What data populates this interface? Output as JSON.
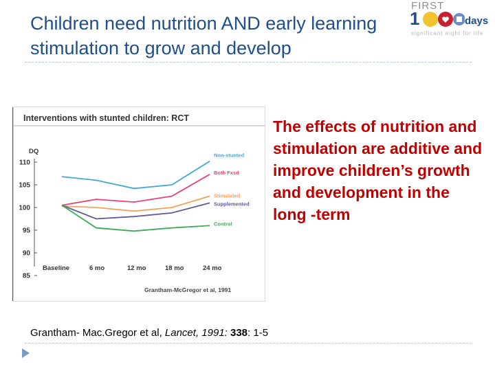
{
  "slide": {
    "title_line1": "Children need nutrition AND early learning",
    "title_line2": "stimulation to grow and develop",
    "body_text": "The effects of nutrition and stimulation are additive and improve children’s growth and development in the long -term",
    "citation": {
      "authors": "Grantham- Mac.Gregor et al, ",
      "journal": "Lancet",
      "year": ", 1991: ",
      "volume": "338",
      "pages": ": 1-5"
    }
  },
  "logo": {
    "first": "FIRST",
    "one": "1",
    "days": "days",
    "tagline": "significant eight for life"
  },
  "colors": {
    "title": "#1f4e8c",
    "body_text": "#c00000",
    "non_stunted": "#3fa9d1",
    "both": "#e8417a",
    "stimulated": "#f4a25a",
    "supplemented": "#5b5b9a",
    "control": "#3daa5a"
  },
  "chart_data": {
    "type": "line",
    "title": "Interventions with stunted children: RCT",
    "ylabel": "DQ",
    "ylim": [
      85,
      110
    ],
    "yticks": [
      110,
      105,
      100,
      95,
      90,
      85
    ],
    "categories": [
      "Baseline",
      "6 mo",
      "12 mo",
      "18 mo",
      "24 mo"
    ],
    "source": "Grantham-McGregor et al, 1991",
    "series": [
      {
        "name": "Non-stunted",
        "color": "#3fa9d1",
        "values": [
          106.8,
          106.0,
          104.2,
          105.0,
          110.2
        ]
      },
      {
        "name": "Both Fxsd",
        "color": "#e8417a",
        "values": [
          100.5,
          101.8,
          101.2,
          102.5,
          107.3
        ]
      },
      {
        "name": "Stimulated",
        "color": "#f4a25a",
        "values": [
          100.3,
          100.0,
          99.2,
          100.0,
          102.5
        ]
      },
      {
        "name": "Supplemented",
        "color": "#5b5b9a",
        "values": [
          100.5,
          97.5,
          98.0,
          98.8,
          101.0
        ]
      },
      {
        "name": "Control",
        "color": "#3daa5a",
        "values": [
          100.5,
          95.5,
          94.8,
          95.5,
          96.0
        ]
      }
    ]
  }
}
